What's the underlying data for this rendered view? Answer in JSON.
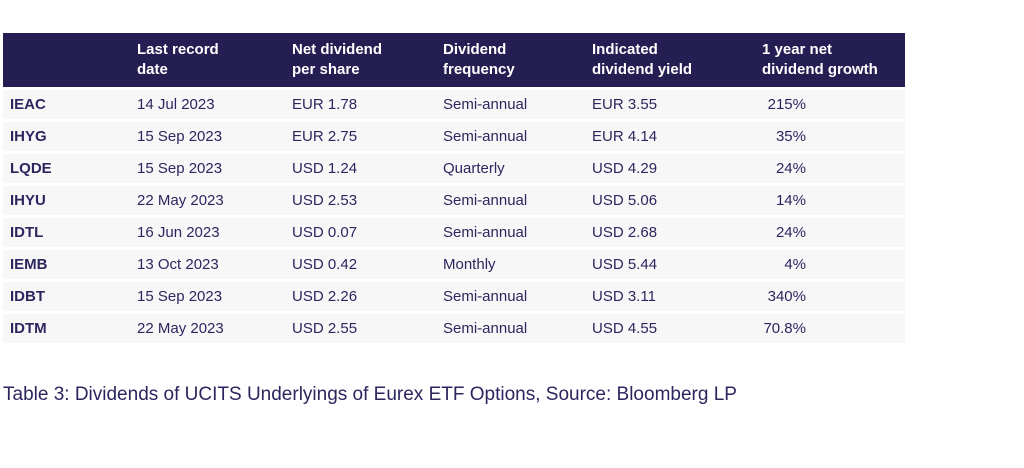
{
  "colors": {
    "header_bg": "#251e52",
    "header_text": "#ffffff",
    "row_bg": "#f7f7f7",
    "body_text": "#2b265e",
    "page_bg": "#ffffff"
  },
  "table": {
    "columns": [
      {
        "line1": "",
        "line2": ""
      },
      {
        "line1": "Last record",
        "line2": "date"
      },
      {
        "line1": "Net dividend",
        "line2": "per share"
      },
      {
        "line1": "Dividend",
        "line2": "frequency"
      },
      {
        "line1": "Indicated",
        "line2": "dividend yield"
      },
      {
        "line1": "1 year net",
        "line2": "dividend growth"
      }
    ],
    "rows": [
      {
        "ticker": "IEAC",
        "last_record_date": "14 Jul 2023",
        "net_dividend_per_share": "EUR 1.78",
        "dividend_frequency": "Semi-annual",
        "indicated_dividend_yield": "EUR 3.55",
        "one_year_net_dividend_growth": "215%"
      },
      {
        "ticker": "IHYG",
        "last_record_date": "15 Sep 2023",
        "net_dividend_per_share": "EUR 2.75",
        "dividend_frequency": "Semi-annual",
        "indicated_dividend_yield": "EUR 4.14",
        "one_year_net_dividend_growth": "35%"
      },
      {
        "ticker": "LQDE",
        "last_record_date": "15 Sep 2023",
        "net_dividend_per_share": "USD 1.24",
        "dividend_frequency": "Quarterly",
        "indicated_dividend_yield": "USD 4.29",
        "one_year_net_dividend_growth": "24%"
      },
      {
        "ticker": "IHYU",
        "last_record_date": "22 May 2023",
        "net_dividend_per_share": "USD 2.53",
        "dividend_frequency": "Semi-annual",
        "indicated_dividend_yield": "USD 5.06",
        "one_year_net_dividend_growth": "14%"
      },
      {
        "ticker": "IDTL",
        "last_record_date": "16 Jun 2023",
        "net_dividend_per_share": "USD 0.07",
        "dividend_frequency": "Semi-annual",
        "indicated_dividend_yield": "USD 2.68",
        "one_year_net_dividend_growth": "24%"
      },
      {
        "ticker": "IEMB",
        "last_record_date": "13 Oct 2023",
        "net_dividend_per_share": "USD 0.42",
        "dividend_frequency": "Monthly",
        "indicated_dividend_yield": "USD 5.44",
        "one_year_net_dividend_growth": "4%"
      },
      {
        "ticker": "IDBT",
        "last_record_date": "15 Sep 2023",
        "net_dividend_per_share": "USD 2.26",
        "dividend_frequency": "Semi-annual",
        "indicated_dividend_yield": "USD 3.11",
        "one_year_net_dividend_growth": "340%"
      },
      {
        "ticker": "IDTM",
        "last_record_date": "22 May 2023",
        "net_dividend_per_share": "USD 2.55",
        "dividend_frequency": "Semi-annual",
        "indicated_dividend_yield": "USD 4.55",
        "one_year_net_dividend_growth": "70.8%"
      }
    ]
  },
  "caption": "Table 3: Dividends of UCITS Underlyings of Eurex ETF Options, Source: Bloomberg LP"
}
